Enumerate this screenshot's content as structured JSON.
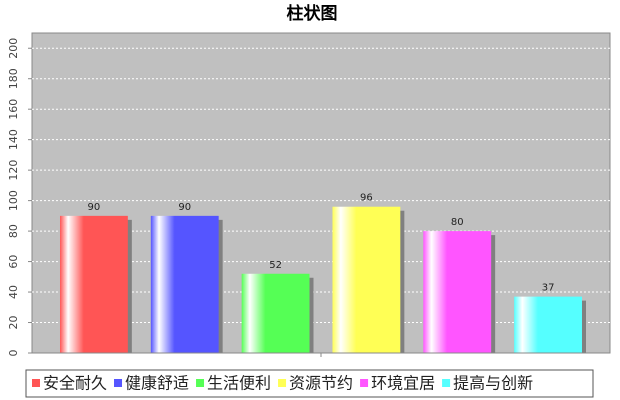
{
  "chart_data": {
    "type": "bar",
    "title": "柱状图",
    "categories": [
      null
    ],
    "series": [
      {
        "name": "安全耐久",
        "color": "#ff5555",
        "values": [
          90
        ]
      },
      {
        "name": "健康舒适",
        "color": "#5555ff",
        "values": [
          90
        ]
      },
      {
        "name": "生活便利",
        "color": "#55ff55",
        "values": [
          52
        ]
      },
      {
        "name": "资源节约",
        "color": "#ffff55",
        "values": [
          96
        ]
      },
      {
        "name": "环境宜居",
        "color": "#ff55ff",
        "values": [
          80
        ]
      },
      {
        "name": "提高与创新",
        "color": "#55ffff",
        "values": [
          37
        ]
      }
    ],
    "ylim": [
      0,
      210
    ],
    "yticks": [
      0,
      20,
      40,
      60,
      80,
      100,
      120,
      140,
      160,
      180,
      200
    ],
    "grid": true,
    "legend": "bottom"
  }
}
